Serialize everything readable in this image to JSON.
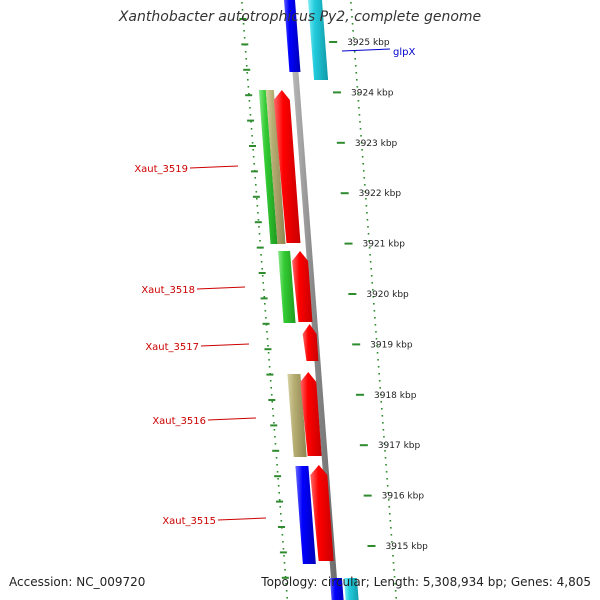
{
  "title": "Xanthobacter autotrophicus Py2, complete genome",
  "accession": {
    "label": "Accession:",
    "value": "NC_009720"
  },
  "topology": {
    "label": "Topology:",
    "value": "circular;",
    "length_label": "Length:",
    "length_value": "5,308,934 bp;",
    "genes_label": "Genes:",
    "genes_value": "4,805"
  },
  "scale_ticks": [
    {
      "kbp": 3925,
      "label": "3925 kbp"
    },
    {
      "kbp": 3924,
      "label": "3924 kbp"
    },
    {
      "kbp": 3923,
      "label": "3923 kbp"
    },
    {
      "kbp": 3922,
      "label": "3922 kbp"
    },
    {
      "kbp": 3921,
      "label": "3921 kbp"
    },
    {
      "kbp": 3920,
      "label": "3920 kbp"
    },
    {
      "kbp": 3919,
      "label": "3919 kbp"
    },
    {
      "kbp": 3918,
      "label": "3918 kbp"
    },
    {
      "kbp": 3917,
      "label": "3917 kbp"
    },
    {
      "kbp": 3916,
      "label": "3916 kbp"
    },
    {
      "kbp": 3915,
      "label": "3915 kbp"
    }
  ],
  "gene_labels": [
    {
      "name": "glpX",
      "color": "#0000cc"
    },
    {
      "name": "Xaut_3519",
      "color": "#cc0000"
    },
    {
      "name": "Xaut_3518",
      "color": "#cc0000"
    },
    {
      "name": "Xaut_3517",
      "color": "#cc0000"
    },
    {
      "name": "Xaut_3516",
      "color": "#cc0000"
    },
    {
      "name": "Xaut_3515",
      "color": "#cc0000"
    }
  ],
  "colors": {
    "backbone": "#8a8a8a",
    "cds": "#ff0000",
    "blue": "#0000ff",
    "cyan": "#22ccdd",
    "green": "#33cc33",
    "khaki": "#b5ad72",
    "tick": "#228822",
    "label_red": "#cc0000",
    "label_blue": "#0000cc"
  }
}
